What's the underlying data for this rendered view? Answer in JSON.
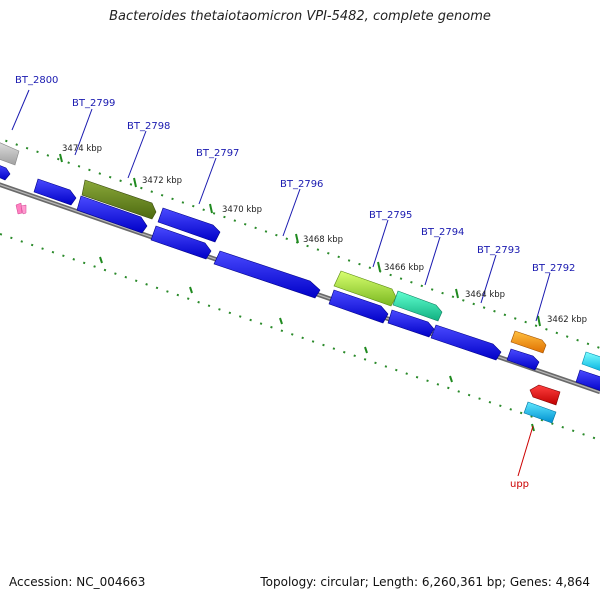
{
  "title": "Bacteroides thetaiotaomicron VPI-5482, complete genome",
  "footer": {
    "accession": "Accession: NC_004663",
    "summary": "Topology: circular; Length: 6,260,361 bp; Genes: 4,864"
  },
  "ticks": [
    "3474 kbp",
    "3472 kbp",
    "3470 kbp",
    "3468 kbp",
    "3466 kbp",
    "3464 kbp",
    "3462 kbp"
  ],
  "gene_labels": [
    "BT_2800",
    "BT_2799",
    "BT_2798",
    "BT_2797",
    "BT_2796",
    "BT_2795",
    "BT_2794",
    "BT_2793",
    "BT_2792",
    "upp"
  ],
  "colors": {
    "label": "#1a1ab0",
    "upp_label": "#cc0000",
    "gene_blue": "#0c0cf0",
    "tick_green": "#1f8a1f",
    "backbone": "#808080"
  }
}
